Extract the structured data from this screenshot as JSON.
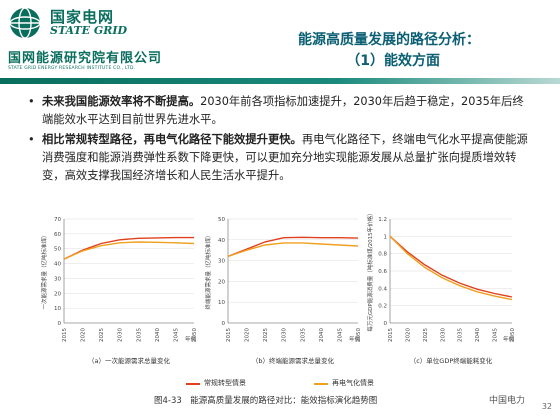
{
  "header": {
    "logo_cn": "国家电网",
    "logo_en": "STATE GRID",
    "institute_cn": "国网能源研究院有限公司",
    "institute_en": "STATE GRID ENERGY RESEARCH INSTITUTE CO., LTD.",
    "title_line1": "能源高质量发展的路径分析：",
    "title_line2": "（1）能效方面",
    "band_color": "#0a6e5e"
  },
  "bullets": [
    {
      "bold": "未来我国能源效率将不断提高。",
      "text": "2030年前各项指标加速提升，2030年后趋于稳定，2035年后终端能效水平达到目前世界先进水平。"
    },
    {
      "bold": "相比常规转型路径，再电气化路径下能效提升更快。",
      "text": "再电气化路径下，终端电气化水平提高使能源消费强度和能源消费弹性系数下降更快，可以更加充分地实现能源发展从总量扩张向提质增效转变，高效支撑我国经济增长和人民生活水平提升。"
    }
  ],
  "figure": {
    "caption": "图4-33　能源高质量发展的路径对比：能效指标演化趋势图",
    "legend": [
      {
        "label": "常规转型情景",
        "color": "#e0401e"
      },
      {
        "label": "再电气化情景",
        "color": "#f0a020"
      }
    ],
    "x_unit": "年份",
    "x_ticks": [
      "2015",
      "2020",
      "2025",
      "2030",
      "2035",
      "2040",
      "2045",
      "2050"
    ]
  },
  "chart_data": [
    {
      "type": "line",
      "title": "（a）一次能源需求总量变化",
      "ylabel": "一次能源需求量（亿吨标准煤）",
      "x": [
        2015,
        2020,
        2025,
        2030,
        2035,
        2040,
        2045,
        2050
      ],
      "ylim": [
        0,
        70
      ],
      "y_ticks": [
        0,
        10,
        20,
        30,
        40,
        50,
        60,
        70
      ],
      "series": [
        {
          "name": "常规转型情景",
          "values": [
            43,
            49,
            53.5,
            56,
            57,
            57.3,
            57.5,
            57.5
          ]
        },
        {
          "name": "再电气化情景",
          "values": [
            43,
            48.5,
            52,
            54,
            54.5,
            54.3,
            54,
            53.5
          ]
        }
      ]
    },
    {
      "type": "line",
      "title": "（b）终端能源需求总量变化",
      "ylabel": "终端能源需求量（亿吨标准煤）",
      "x": [
        2015,
        2020,
        2025,
        2030,
        2035,
        2040,
        2045,
        2050
      ],
      "ylim": [
        0,
        50
      ],
      "y_ticks": [
        0,
        10,
        20,
        30,
        40,
        50
      ],
      "series": [
        {
          "name": "常规转型情景",
          "values": [
            32,
            35.5,
            39,
            41,
            41.2,
            41,
            41,
            40.8
          ]
        },
        {
          "name": "再电气化情景",
          "values": [
            32,
            35,
            37.5,
            38.5,
            38.5,
            38,
            37.5,
            37
          ]
        }
      ]
    },
    {
      "type": "line",
      "title": "（c）单位GDP终端能耗变化",
      "ylabel": "每万元GDP能源消费量（吨标准煤/2015年价格）",
      "x": [
        2015,
        2020,
        2025,
        2030,
        2035,
        2040,
        2045,
        2050
      ],
      "ylim": [
        0,
        1.2
      ],
      "y_ticks": [
        0,
        0.2,
        0.4,
        0.6,
        0.8,
        1.0,
        1.2
      ],
      "series": [
        {
          "name": "常规转型情景",
          "values": [
            1.0,
            0.82,
            0.67,
            0.55,
            0.46,
            0.39,
            0.34,
            0.3
          ]
        },
        {
          "name": "再电气化情景",
          "values": [
            1.0,
            0.8,
            0.64,
            0.52,
            0.43,
            0.36,
            0.31,
            0.27
          ]
        }
      ]
    }
  ],
  "footer": {
    "watermark": "中国电力",
    "page_number": "32"
  }
}
